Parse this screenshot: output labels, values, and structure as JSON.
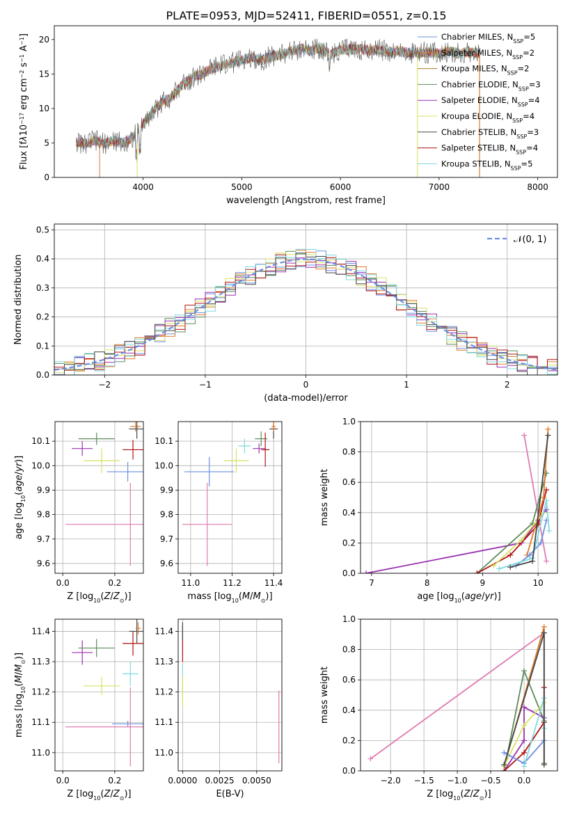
{
  "figure_title": "PLATE=0953, MJD=52411, FIBERID=0551, z=0.15",
  "colors": {
    "c1": "#6b8fe0",
    "c2": "#e07a2a",
    "c3": "#a0801a",
    "c4": "#5b8a5b",
    "c5": "#9a2fb0",
    "c6": "#d8e060",
    "c7": "#444444",
    "c8": "#b01010",
    "c9": "#7fd8e0",
    "c10": "#e07ab0",
    "grid": "#b0b0b0"
  },
  "chart_data": [
    {
      "id": "spectrum",
      "type": "line",
      "title": "PLATE=0953, MJD=52411, FIBERID=0551, z=0.15",
      "xlabel": "wavelength [Angstrom, rest frame]",
      "ylabel_html": "Flux [f<tspan font-style='italic'>λ</tspan>10<tspan baseline-shift='super' font-size='8'>−17</tspan> erg cm<tspan baseline-shift='super' font-size='8'>−2</tspan> s<tspan baseline-shift='super' font-size='8'>−1</tspan> A<tspan baseline-shift='super' font-size='8'>−1</tspan>]",
      "xlim": [
        3100,
        8200
      ],
      "ylim": [
        0,
        22
      ],
      "xticks": [
        4000,
        5000,
        6000,
        7000,
        8000
      ],
      "yticks": [
        0,
        5,
        10,
        15,
        20
      ],
      "spectrum_envelope": [
        [
          3320,
          5.2
        ],
        [
          3400,
          4.8
        ],
        [
          3500,
          5.4
        ],
        [
          3600,
          4.9
        ],
        [
          3700,
          5.3
        ],
        [
          3800,
          5.0
        ],
        [
          3900,
          5.8
        ],
        [
          4000,
          7.8
        ],
        [
          4100,
          9.5
        ],
        [
          4200,
          11.0
        ],
        [
          4300,
          11.8
        ],
        [
          4400,
          13.5
        ],
        [
          4500,
          14.5
        ],
        [
          4600,
          15.0
        ],
        [
          4700,
          15.8
        ],
        [
          4800,
          16.3
        ],
        [
          4900,
          16.6
        ],
        [
          5000,
          17.0
        ],
        [
          5100,
          17.4
        ],
        [
          5200,
          17.0
        ],
        [
          5300,
          17.6
        ],
        [
          5400,
          17.8
        ],
        [
          5500,
          18.3
        ],
        [
          5600,
          18.6
        ],
        [
          5700,
          18.4
        ],
        [
          5800,
          18.8
        ],
        [
          5900,
          17.8
        ],
        [
          6000,
          18.5
        ],
        [
          6100,
          18.6
        ],
        [
          6200,
          18.6
        ],
        [
          6300,
          18.4
        ],
        [
          6400,
          18.5
        ],
        [
          6500,
          18.2
        ],
        [
          6600,
          18.3
        ],
        [
          6700,
          18.0
        ],
        [
          6800,
          18.2
        ],
        [
          6900,
          18.1
        ],
        [
          7000,
          18.0
        ],
        [
          7100,
          18.3
        ],
        [
          7200,
          18.0
        ],
        [
          7300,
          18.2
        ],
        [
          7400,
          18.0
        ]
      ],
      "series": [
        {
          "name": "Chabrier MILES, N_SSP=5",
          "label": "Chabrier MILES, N",
          "sub": "SSP",
          "suffix": "=5",
          "color": "#6b8fe0"
        },
        {
          "name": "Salpeter MILES, N_SSP=2",
          "label": "Salpeter MILES, N",
          "sub": "SSP",
          "suffix": "=2",
          "color": "#e07a2a"
        },
        {
          "name": "Kroupa MILES, N_SSP=2",
          "label": "Kroupa MILES, N",
          "sub": "SSP",
          "suffix": "=2",
          "color": "#a0801a"
        },
        {
          "name": "Chabrier ELODIE, N_SSP=3",
          "label": "Chabrier ELODIE, N",
          "sub": "SSP",
          "suffix": "=3",
          "color": "#5b8a5b"
        },
        {
          "name": "Salpeter ELODIE, N_SSP=4",
          "label": "Salpeter ELODIE, N",
          "sub": "SSP",
          "suffix": "=4",
          "color": "#9a2fb0"
        },
        {
          "name": "Kroupa ELODIE, N_SSP=4",
          "label": "Kroupa ELODIE, N",
          "sub": "SSP",
          "suffix": "=4",
          "color": "#d8e060"
        },
        {
          "name": "Chabrier STELIB, N_SSP=3",
          "label": "Chabrier STELIB, N",
          "sub": "SSP",
          "suffix": "=3",
          "color": "#444444"
        },
        {
          "name": "Salpeter STELIB, N_SSP=4",
          "label": "Salpeter STELIB, N",
          "sub": "SSP",
          "suffix": "=4",
          "color": "#b01010"
        },
        {
          "name": "Kroupa STELIB, N_SSP=5",
          "label": "Kroupa STELIB, N",
          "sub": "SSP",
          "suffix": "=5",
          "color": "#7fd8e0"
        }
      ]
    },
    {
      "id": "residuals",
      "type": "line",
      "xlabel": "(data-model)/error",
      "ylabel": "Normed distribution",
      "xlim": [
        -2.5,
        2.5
      ],
      "ylim": [
        0,
        0.52
      ],
      "xticks": [
        -2,
        -1,
        0,
        1,
        2
      ],
      "xticklabels": [
        "−2",
        "−1",
        "0",
        "1",
        "2"
      ],
      "yticks": [
        0.0,
        0.1,
        0.2,
        0.3,
        0.4,
        0.5
      ],
      "yticklabels": [
        "0.0",
        "0.1",
        "0.2",
        "0.3",
        "0.4",
        "0.5"
      ],
      "legend_label": "𝒩(0, 1)",
      "gaussian": {
        "mean": 0,
        "sigma": 1,
        "color": "#6b8fe0"
      },
      "bin_width": 0.1,
      "histogram_colors": [
        "#6b8fe0",
        "#e07a2a",
        "#5b8a5b",
        "#9a2fb0",
        "#d8e060",
        "#b01010",
        "#7fd8e0",
        "#444444"
      ]
    },
    {
      "id": "age_vs_Z",
      "type": "scatter",
      "xlabel_html": "Z [log<tspan baseline-shift='sub' font-size='8'>10</tspan>(<tspan font-style='italic'>Z</tspan>/<tspan font-style='italic'>Z</tspan><tspan baseline-shift='sub' font-size='8'>⊙</tspan>)]",
      "ylabel_html": "age  [log<tspan baseline-shift='sub' font-size='8'>10</tspan>(<tspan font-style='italic'>age</tspan>/<tspan font-style='italic'>yr</tspan>)]",
      "xlim": [
        -0.03,
        0.31
      ],
      "ylim": [
        9.56,
        10.18
      ],
      "xticks": [
        0.0,
        0.2
      ],
      "xticklabels": [
        "0.0",
        "0.2"
      ],
      "yticks": [
        9.6,
        9.7,
        9.8,
        9.9,
        10.0,
        10.1
      ],
      "yticklabels": [
        "9.6",
        "9.7",
        "9.8",
        "9.9",
        "10.0",
        "10.1"
      ],
      "points": [
        {
          "x": 0.075,
          "y": 10.07,
          "xerr": 0.04,
          "yerr": 0.03,
          "color": "#9a2fb0"
        },
        {
          "x": 0.13,
          "y": 10.11,
          "xerr": 0.07,
          "yerr": 0.025,
          "color": "#5b8a5b"
        },
        {
          "x": 0.15,
          "y": 10.02,
          "xerr": 0.07,
          "yerr": 0.05,
          "color": "#d8e060"
        },
        {
          "x": 0.25,
          "y": 9.975,
          "xerr": 0.08,
          "yerr": 0.04,
          "color": "#6b8fe0"
        },
        {
          "x": 0.26,
          "y": 9.76,
          "xerr": 0.25,
          "yerr": 0.17,
          "color": "#e07ab0"
        },
        {
          "x": 0.27,
          "y": 10.065,
          "xerr": 0.04,
          "yerr": 0.04,
          "color": "#b01010"
        },
        {
          "x": 0.28,
          "y": 10.16,
          "xerr": 0.02,
          "yerr": 0.02,
          "color": "#e07a2a"
        },
        {
          "x": 0.285,
          "y": 10.15,
          "xerr": 0.03,
          "yerr": 0.04,
          "color": "#444444"
        }
      ]
    },
    {
      "id": "age_vs_mass",
      "type": "scatter",
      "xlabel_html": "mass [log<tspan baseline-shift='sub' font-size='8'>10</tspan>(<tspan font-style='italic'>M</tspan>/<tspan font-style='italic'>M</tspan><tspan baseline-shift='sub' font-size='8'>⊙</tspan>)]",
      "xlim": [
        10.94,
        11.44
      ],
      "ylim": [
        9.56,
        10.18
      ],
      "xticks": [
        11.0,
        11.2,
        11.4
      ],
      "xticklabels": [
        "11.0",
        "11.2",
        "11.4"
      ],
      "yticks": [
        9.6,
        9.7,
        9.8,
        9.9,
        10.0,
        10.1
      ],
      "yticklabels": [
        "9.6",
        "9.7",
        "9.8",
        "9.9",
        "10.0",
        "10.1"
      ],
      "points": [
        {
          "x": 11.09,
          "y": 9.975,
          "xerr": 0.12,
          "yerr": 0.06,
          "color": "#6b8fe0"
        },
        {
          "x": 11.08,
          "y": 9.76,
          "xerr": 0.12,
          "yerr": 0.17,
          "color": "#e07ab0"
        },
        {
          "x": 11.22,
          "y": 10.02,
          "xerr": 0.06,
          "yerr": 0.05,
          "color": "#d8e060"
        },
        {
          "x": 11.26,
          "y": 10.08,
          "xerr": 0.03,
          "yerr": 0.03,
          "color": "#7fd8e0"
        },
        {
          "x": 11.34,
          "y": 10.11,
          "xerr": 0.03,
          "yerr": 0.03,
          "color": "#5b8a5b"
        },
        {
          "x": 11.33,
          "y": 10.07,
          "xerr": 0.03,
          "yerr": 0.02,
          "color": "#9a2fb0"
        },
        {
          "x": 11.36,
          "y": 10.065,
          "xerr": 0.02,
          "yerr": 0.07,
          "color": "#b01010"
        },
        {
          "x": 11.4,
          "y": 10.15,
          "xerr": 0.02,
          "yerr": 0.04,
          "color": "#444444"
        },
        {
          "x": 11.4,
          "y": 10.16,
          "xerr": 0.01,
          "yerr": 0.02,
          "color": "#e07a2a"
        }
      ]
    },
    {
      "id": "weight_vs_age",
      "type": "line",
      "xlabel_html": "age  [log<tspan baseline-shift='sub' font-size='8'>10</tspan>(<tspan font-style='italic'>age</tspan>/<tspan font-style='italic'>yr</tspan>)]",
      "ylabel": "mass weight",
      "xlim": [
        6.8,
        10.35
      ],
      "ylim": [
        0,
        1.0
      ],
      "xticks": [
        7,
        8,
        9,
        10
      ],
      "xticklabels": [
        "7",
        "8",
        "9",
        "10"
      ],
      "yticks": [
        0.0,
        0.2,
        0.4,
        0.6,
        0.8,
        1.0
      ],
      "yticklabels": [
        "0.0",
        "0.2",
        "0.4",
        "0.6",
        "0.8",
        "1.0"
      ],
      "series": [
        {
          "color": "#e07ab0",
          "x": [
            9.75,
            10.15
          ],
          "y": [
            0.91,
            0.08
          ]
        },
        {
          "color": "#9a2fb0",
          "x": [
            6.9,
            9.7,
            10.0,
            10.15
          ],
          "y": [
            0.0,
            0.2,
            0.35,
            0.42
          ]
        },
        {
          "color": "#5b8a5b",
          "x": [
            8.9,
            9.9,
            10.15
          ],
          "y": [
            0.0,
            0.33,
            0.66
          ]
        },
        {
          "color": "#b01010",
          "x": [
            8.9,
            9.5,
            10.0,
            10.15
          ],
          "y": [
            0.0,
            0.12,
            0.32,
            0.55
          ]
        },
        {
          "color": "#e07a2a",
          "x": [
            9.8,
            10.1,
            10.18
          ],
          "y": [
            0.12,
            0.5,
            0.95
          ]
        },
        {
          "color": "#6b8fe0",
          "x": [
            9.6,
            9.85,
            10.05,
            10.15
          ],
          "y": [
            0.05,
            0.12,
            0.2,
            0.35
          ]
        },
        {
          "color": "#d8e060",
          "x": [
            9.2,
            9.7,
            10.1
          ],
          "y": [
            0.05,
            0.22,
            0.4
          ]
        },
        {
          "color": "#7fd8e0",
          "x": [
            9.3,
            9.9,
            10.15,
            10.2
          ],
          "y": [
            0.03,
            0.1,
            0.48,
            0.28
          ]
        },
        {
          "color": "#444444",
          "x": [
            9.5,
            9.9,
            10.18
          ],
          "y": [
            0.04,
            0.08,
            0.91
          ]
        }
      ]
    },
    {
      "id": "mass_vs_Z",
      "type": "scatter",
      "xlabel_html": "Z [log<tspan baseline-shift='sub' font-size='8'>10</tspan>(<tspan font-style='italic'>Z</tspan>/<tspan font-style='italic'>Z</tspan><tspan baseline-shift='sub' font-size='8'>⊙</tspan>)]",
      "ylabel_html": "mass [log<tspan baseline-shift='sub' font-size='8'>10</tspan>(<tspan font-style='italic'>M</tspan>/<tspan font-style='italic'>M</tspan><tspan baseline-shift='sub' font-size='8'>⊙</tspan>)]",
      "xlim": [
        -0.03,
        0.31
      ],
      "ylim": [
        10.94,
        11.44
      ],
      "xticks": [
        0.0,
        0.2
      ],
      "xticklabels": [
        "0.0",
        "0.2"
      ],
      "yticks": [
        11.0,
        11.1,
        11.2,
        11.3,
        11.4
      ],
      "yticklabels": [
        "11.0",
        "11.1",
        "11.2",
        "11.3",
        "11.4"
      ],
      "points": [
        {
          "x": 0.075,
          "y": 11.33,
          "xerr": 0.04,
          "yerr": 0.04,
          "color": "#9a2fb0"
        },
        {
          "x": 0.13,
          "y": 11.345,
          "xerr": 0.07,
          "yerr": 0.03,
          "color": "#5b8a5b"
        },
        {
          "x": 0.15,
          "y": 11.22,
          "xerr": 0.07,
          "yerr": 0.03,
          "color": "#d8e060"
        },
        {
          "x": 0.26,
          "y": 11.26,
          "xerr": 0.03,
          "yerr": 0.04,
          "color": "#7fd8e0"
        },
        {
          "x": 0.25,
          "y": 11.095,
          "xerr": 0.06,
          "yerr": 0.01,
          "color": "#6b8fe0"
        },
        {
          "x": 0.26,
          "y": 11.085,
          "xerr": 0.25,
          "yerr": 0.13,
          "color": "#e07ab0"
        },
        {
          "x": 0.27,
          "y": 11.36,
          "xerr": 0.04,
          "yerr": 0.04,
          "color": "#b01010"
        },
        {
          "x": 0.285,
          "y": 11.4,
          "xerr": 0.03,
          "yerr": 0.04,
          "color": "#444444"
        },
        {
          "x": 0.29,
          "y": 11.41,
          "xerr": 0.01,
          "yerr": 0.02,
          "color": "#e07a2a"
        }
      ]
    },
    {
      "id": "mass_vs_ebv",
      "type": "scatter",
      "xlabel": "E(B-V)",
      "xlim": [
        -0.0003,
        0.0067
      ],
      "ylim": [
        10.94,
        11.44
      ],
      "xticks": [
        0.0,
        0.0025,
        0.005
      ],
      "xticklabels": [
        "0.0000",
        "0.0025",
        "0.0050"
      ],
      "yticks": [
        11.0,
        11.1,
        11.2,
        11.3,
        11.4
      ],
      "yticklabels": [
        "11.0",
        "11.1",
        "11.2",
        "11.3",
        "11.4"
      ],
      "points": [
        {
          "x": 0.0,
          "y": 11.36,
          "xerr": 0,
          "yerr": 0.06,
          "color": "#b01010"
        },
        {
          "x": 0.0,
          "y": 11.4,
          "xerr": 0,
          "yerr": 0.03,
          "color": "#444444"
        },
        {
          "x": 0.0,
          "y": 11.23,
          "xerr": 0,
          "yerr": 0.06,
          "color": "#7fd8e0"
        },
        {
          "x": 0.0,
          "y": 11.2,
          "xerr": 0,
          "yerr": 0.05,
          "color": "#d8e060"
        },
        {
          "x": 0.0065,
          "y": 11.085,
          "xerr": 0,
          "yerr": 0.12,
          "color": "#e07ab0"
        }
      ]
    },
    {
      "id": "weight_vs_Z",
      "type": "line",
      "xlabel_html": "Z [log<tspan baseline-shift='sub' font-size='8'>10</tspan>(<tspan font-style='italic'>Z</tspan>/<tspan font-style='italic'>Z</tspan><tspan baseline-shift='sub' font-size='8'>⊙</tspan>)]",
      "ylabel": "mass weight",
      "xlim": [
        -2.45,
        0.5
      ],
      "ylim": [
        0,
        1.0
      ],
      "xticks": [
        -2.0,
        -1.5,
        -1.0,
        -0.5,
        0.0
      ],
      "xticklabels": [
        "−2.0",
        "−1.5",
        "−1.0",
        "−0.5",
        "0.0"
      ],
      "yticks": [
        0.0,
        0.2,
        0.4,
        0.6,
        0.8,
        1.0
      ],
      "yticklabels": [
        "0.0",
        "0.2",
        "0.4",
        "0.6",
        "0.8",
        "1.0"
      ],
      "series": [
        {
          "color": "#e07ab0",
          "x": [
            -2.3,
            0.3
          ],
          "y": [
            0.08,
            0.91
          ]
        },
        {
          "color": "#e07a2a",
          "x": [
            -0.3,
            0.3,
            0.3
          ],
          "y": [
            0.03,
            0.95,
            0.05
          ]
        },
        {
          "color": "#5b8a5b",
          "x": [
            -0.3,
            0.0,
            0.3,
            0.3
          ],
          "y": [
            0.0,
            0.66,
            0.33,
            0.05
          ]
        },
        {
          "color": "#9a2fb0",
          "x": [
            -0.3,
            0.0,
            0.0,
            0.3
          ],
          "y": [
            0.0,
            0.2,
            0.42,
            0.35
          ]
        },
        {
          "color": "#b01010",
          "x": [
            -0.3,
            0.0,
            0.3,
            0.3
          ],
          "y": [
            0.0,
            0.12,
            0.32,
            0.55
          ]
        },
        {
          "color": "#d8e060",
          "x": [
            -0.3,
            0.0,
            0.3
          ],
          "y": [
            0.03,
            0.3,
            0.45
          ]
        },
        {
          "color": "#6b8fe0",
          "x": [
            -0.3,
            0.0,
            0.3,
            0.3
          ],
          "y": [
            0.12,
            0.05,
            0.2,
            0.35
          ]
        },
        {
          "color": "#7fd8e0",
          "x": [
            0.0,
            0.3,
            0.3
          ],
          "y": [
            0.03,
            0.48,
            0.28
          ]
        },
        {
          "color": "#444444",
          "x": [
            -0.3,
            0.3,
            0.3
          ],
          "y": [
            0.04,
            0.91,
            0.04
          ]
        }
      ]
    }
  ]
}
